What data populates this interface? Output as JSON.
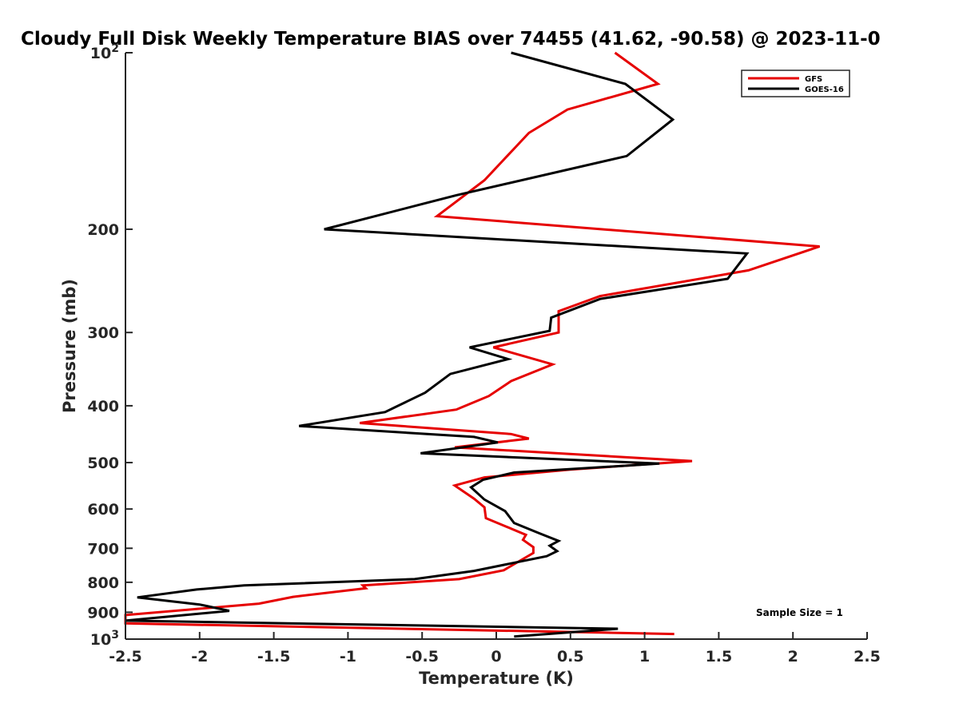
{
  "chart_data": {
    "type": "line",
    "title": "Cloudy Full Disk Weekly Temperature BIAS over 74455 (41.62, -90.58) @ 2023-11-0",
    "xlabel": "Temperature (K)",
    "ylabel": "Pressure (mb)",
    "xlim": [
      -2.5,
      2.5
    ],
    "ylim": [
      100,
      1000
    ],
    "y_scale": "log",
    "y_reversed": true,
    "grid": false,
    "legend_position": "top-right",
    "x_ticks": [
      "-2.5",
      "-2",
      "-1.5",
      "-1",
      "-0.5",
      "0",
      "0.5",
      "1",
      "1.5",
      "2",
      "2.5"
    ],
    "y_ticks": [
      {
        "value": 100,
        "label": "10",
        "sup": "2"
      },
      {
        "value": 200,
        "label": "200"
      },
      {
        "value": 300,
        "label": "300"
      },
      {
        "value": 400,
        "label": "400"
      },
      {
        "value": 500,
        "label": "500"
      },
      {
        "value": 600,
        "label": "600"
      },
      {
        "value": 700,
        "label": "700"
      },
      {
        "value": 800,
        "label": "800"
      },
      {
        "value": 900,
        "label": "900"
      },
      {
        "value": 1000,
        "label": "10",
        "sup": "3"
      }
    ],
    "annotation": "Sample Size = 1",
    "series": [
      {
        "name": "GFS",
        "color": "#e60000",
        "x": [
          0.8,
          1.09,
          0.48,
          0.22,
          -0.08,
          -0.4,
          2.18,
          1.7,
          0.7,
          0.42,
          0.42,
          -0.02,
          0.38,
          0.1,
          -0.05,
          -0.27,
          -0.92,
          0.1,
          0.22,
          -0.28,
          1.32,
          0.5,
          -0.08,
          -0.28,
          -0.15,
          -0.08,
          -0.07,
          0.1,
          0.2,
          0.18,
          0.25,
          0.25,
          0.05,
          -0.25,
          -0.9,
          -0.88,
          -1.37,
          -1.6,
          -2.5,
          -2.5,
          1.2
        ],
        "y": [
          100,
          113,
          125,
          137,
          165,
          190,
          214,
          235,
          260,
          276,
          300,
          318,
          340,
          363,
          385,
          406,
          428,
          447,
          455,
          471,
          497,
          514,
          530,
          547,
          576,
          596,
          622,
          648,
          664,
          677,
          697,
          713,
          763,
          790,
          810,
          819,
          847,
          870,
          910,
          940,
          980
        ]
      },
      {
        "name": "GOES-16",
        "color": "#000000",
        "x": [
          0.1,
          0.87,
          1.19,
          0.88,
          -0.27,
          -1.16,
          1.69,
          1.56,
          0.7,
          0.37,
          0.36,
          -0.18,
          0.08,
          -0.31,
          -0.48,
          -0.75,
          -1.33,
          -0.15,
          0.01,
          -0.51,
          1.1,
          0.12,
          -0.09,
          -0.17,
          -0.08,
          0.06,
          0.12,
          0.29,
          0.42,
          0.36,
          0.41,
          0.34,
          -0.15,
          -0.55,
          -1.7,
          -2.02,
          -2.42,
          -2.0,
          -1.8,
          -2.5,
          0.82,
          0.12
        ],
        "y": [
          100,
          113,
          130,
          150,
          175,
          200,
          220,
          243,
          263,
          283,
          298,
          318,
          333,
          353,
          380,
          410,
          433,
          452,
          462,
          482,
          502,
          520,
          535,
          551,
          578,
          605,
          634,
          660,
          680,
          693,
          708,
          722,
          765,
          790,
          810,
          823,
          849,
          873,
          895,
          930,
          960,
          990
        ]
      }
    ]
  }
}
